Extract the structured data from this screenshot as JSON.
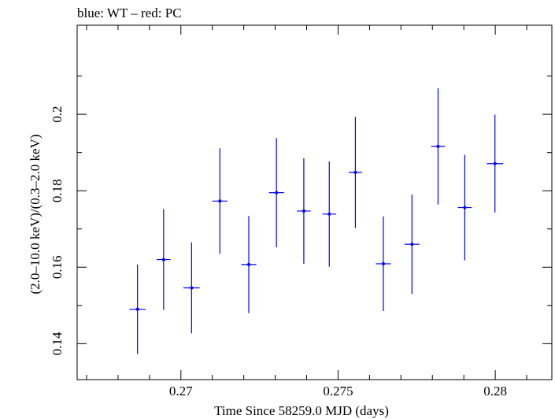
{
  "chart_data": {
    "type": "scatter",
    "title": "blue: WT – red: PC",
    "xlabel": "Time Since 58259.0 MJD (days)",
    "ylabel": "(2.0–10.0 keV)/(0.3–2.0 keV)",
    "xlim": [
      0.2667,
      0.2818
    ],
    "ylim": [
      0.1306,
      0.2233
    ],
    "xticks": [
      0.27,
      0.275,
      0.28
    ],
    "xtick_labels": [
      "0.27",
      "0.275",
      "0.28"
    ],
    "yticks": [
      0.14,
      0.16,
      0.18,
      0.2
    ],
    "ytick_labels": [
      "0.14",
      "0.16",
      "0.18",
      "0.2"
    ],
    "grid": false,
    "series": [
      {
        "color": "#0000ff",
        "points": [
          {
            "x": 0.26862,
            "xerr": 0.00026,
            "y": 0.149,
            "yerr": 0.0117
          },
          {
            "x": 0.26945,
            "xerr": 0.00022,
            "y": 0.162,
            "yerr": 0.0132
          },
          {
            "x": 0.27034,
            "xerr": 0.00026,
            "y": 0.1546,
            "yerr": 0.0119
          },
          {
            "x": 0.27124,
            "xerr": 0.00024,
            "y": 0.1773,
            "yerr": 0.0138
          },
          {
            "x": 0.27216,
            "xerr": 0.00024,
            "y": 0.1607,
            "yerr": 0.0127
          },
          {
            "x": 0.27304,
            "xerr": 0.00024,
            "y": 0.1795,
            "yerr": 0.0143
          },
          {
            "x": 0.27391,
            "xerr": 0.00022,
            "y": 0.1747,
            "yerr": 0.0138
          },
          {
            "x": 0.27472,
            "xerr": 0.00022,
            "y": 0.1739,
            "yerr": 0.0138
          },
          {
            "x": 0.27555,
            "xerr": 0.00021,
            "y": 0.1848,
            "yerr": 0.0145
          },
          {
            "x": 0.27644,
            "xerr": 0.00024,
            "y": 0.1609,
            "yerr": 0.0124
          },
          {
            "x": 0.27735,
            "xerr": 0.00024,
            "y": 0.166,
            "yerr": 0.013
          },
          {
            "x": 0.27818,
            "xerr": 0.00022,
            "y": 0.1916,
            "yerr": 0.0152
          },
          {
            "x": 0.27903,
            "xerr": 0.00022,
            "y": 0.1756,
            "yerr": 0.0138
          },
          {
            "x": 0.27999,
            "xerr": 0.00026,
            "y": 0.1871,
            "yerr": 0.0128
          }
        ]
      }
    ]
  }
}
